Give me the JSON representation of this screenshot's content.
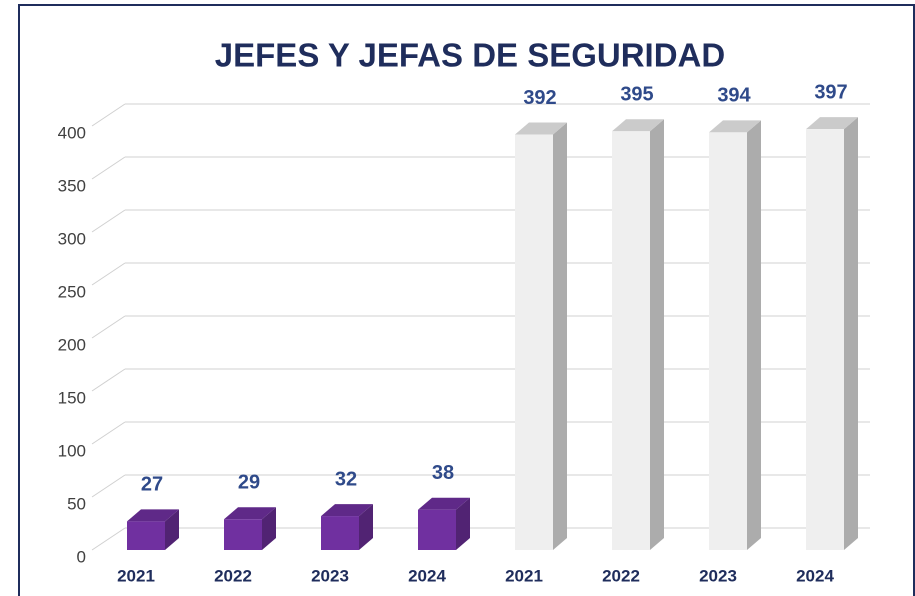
{
  "chart_data": {
    "type": "bar3d",
    "title": "JEFES Y JEFAS DE SEGURIDAD",
    "categories": [
      "2021",
      "2022",
      "2023",
      "2024",
      "2021",
      "2022",
      "2023",
      "2024"
    ],
    "values": [
      27,
      29,
      32,
      38,
      392,
      395,
      394,
      397
    ],
    "colors": [
      "#7030a0",
      "#7030a0",
      "#7030a0",
      "#7030a0",
      "#efefef",
      "#efefef",
      "#efefef",
      "#efefef"
    ],
    "ylim": [
      0,
      400
    ],
    "yticks": [
      0,
      50,
      100,
      150,
      200,
      250,
      300,
      350,
      400
    ],
    "grid": true
  }
}
